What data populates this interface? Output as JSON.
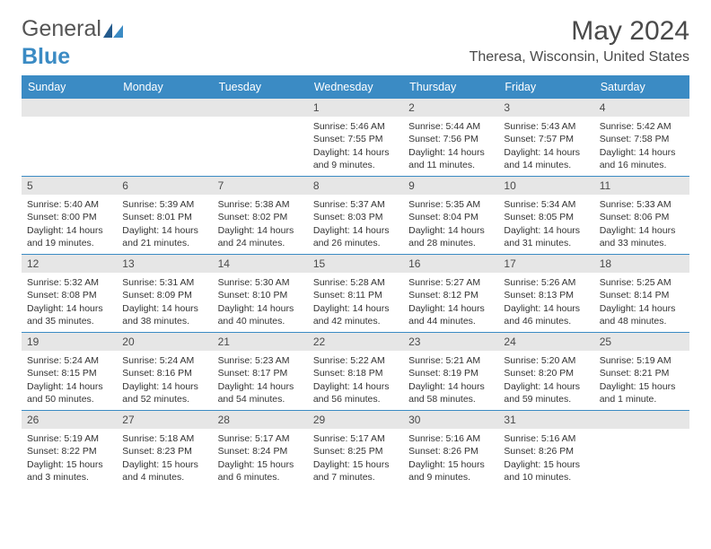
{
  "brand": {
    "word1": "General",
    "word2": "Blue"
  },
  "title": "May 2024",
  "location": "Theresa, Wisconsin, United States",
  "colors": {
    "header_bg": "#3b8bc4",
    "daynum_bg": "#e6e6e6",
    "text": "#4a4a4a",
    "rule": "#3b8bc4"
  },
  "daysOfWeek": [
    "Sunday",
    "Monday",
    "Tuesday",
    "Wednesday",
    "Thursday",
    "Friday",
    "Saturday"
  ],
  "weeks": [
    [
      {
        "n": "",
        "sr": "",
        "ss": "",
        "dl": ""
      },
      {
        "n": "",
        "sr": "",
        "ss": "",
        "dl": ""
      },
      {
        "n": "",
        "sr": "",
        "ss": "",
        "dl": ""
      },
      {
        "n": "1",
        "sr": "Sunrise: 5:46 AM",
        "ss": "Sunset: 7:55 PM",
        "dl": "Daylight: 14 hours and 9 minutes."
      },
      {
        "n": "2",
        "sr": "Sunrise: 5:44 AM",
        "ss": "Sunset: 7:56 PM",
        "dl": "Daylight: 14 hours and 11 minutes."
      },
      {
        "n": "3",
        "sr": "Sunrise: 5:43 AM",
        "ss": "Sunset: 7:57 PM",
        "dl": "Daylight: 14 hours and 14 minutes."
      },
      {
        "n": "4",
        "sr": "Sunrise: 5:42 AM",
        "ss": "Sunset: 7:58 PM",
        "dl": "Daylight: 14 hours and 16 minutes."
      }
    ],
    [
      {
        "n": "5",
        "sr": "Sunrise: 5:40 AM",
        "ss": "Sunset: 8:00 PM",
        "dl": "Daylight: 14 hours and 19 minutes."
      },
      {
        "n": "6",
        "sr": "Sunrise: 5:39 AM",
        "ss": "Sunset: 8:01 PM",
        "dl": "Daylight: 14 hours and 21 minutes."
      },
      {
        "n": "7",
        "sr": "Sunrise: 5:38 AM",
        "ss": "Sunset: 8:02 PM",
        "dl": "Daylight: 14 hours and 24 minutes."
      },
      {
        "n": "8",
        "sr": "Sunrise: 5:37 AM",
        "ss": "Sunset: 8:03 PM",
        "dl": "Daylight: 14 hours and 26 minutes."
      },
      {
        "n": "9",
        "sr": "Sunrise: 5:35 AM",
        "ss": "Sunset: 8:04 PM",
        "dl": "Daylight: 14 hours and 28 minutes."
      },
      {
        "n": "10",
        "sr": "Sunrise: 5:34 AM",
        "ss": "Sunset: 8:05 PM",
        "dl": "Daylight: 14 hours and 31 minutes."
      },
      {
        "n": "11",
        "sr": "Sunrise: 5:33 AM",
        "ss": "Sunset: 8:06 PM",
        "dl": "Daylight: 14 hours and 33 minutes."
      }
    ],
    [
      {
        "n": "12",
        "sr": "Sunrise: 5:32 AM",
        "ss": "Sunset: 8:08 PM",
        "dl": "Daylight: 14 hours and 35 minutes."
      },
      {
        "n": "13",
        "sr": "Sunrise: 5:31 AM",
        "ss": "Sunset: 8:09 PM",
        "dl": "Daylight: 14 hours and 38 minutes."
      },
      {
        "n": "14",
        "sr": "Sunrise: 5:30 AM",
        "ss": "Sunset: 8:10 PM",
        "dl": "Daylight: 14 hours and 40 minutes."
      },
      {
        "n": "15",
        "sr": "Sunrise: 5:28 AM",
        "ss": "Sunset: 8:11 PM",
        "dl": "Daylight: 14 hours and 42 minutes."
      },
      {
        "n": "16",
        "sr": "Sunrise: 5:27 AM",
        "ss": "Sunset: 8:12 PM",
        "dl": "Daylight: 14 hours and 44 minutes."
      },
      {
        "n": "17",
        "sr": "Sunrise: 5:26 AM",
        "ss": "Sunset: 8:13 PM",
        "dl": "Daylight: 14 hours and 46 minutes."
      },
      {
        "n": "18",
        "sr": "Sunrise: 5:25 AM",
        "ss": "Sunset: 8:14 PM",
        "dl": "Daylight: 14 hours and 48 minutes."
      }
    ],
    [
      {
        "n": "19",
        "sr": "Sunrise: 5:24 AM",
        "ss": "Sunset: 8:15 PM",
        "dl": "Daylight: 14 hours and 50 minutes."
      },
      {
        "n": "20",
        "sr": "Sunrise: 5:24 AM",
        "ss": "Sunset: 8:16 PM",
        "dl": "Daylight: 14 hours and 52 minutes."
      },
      {
        "n": "21",
        "sr": "Sunrise: 5:23 AM",
        "ss": "Sunset: 8:17 PM",
        "dl": "Daylight: 14 hours and 54 minutes."
      },
      {
        "n": "22",
        "sr": "Sunrise: 5:22 AM",
        "ss": "Sunset: 8:18 PM",
        "dl": "Daylight: 14 hours and 56 minutes."
      },
      {
        "n": "23",
        "sr": "Sunrise: 5:21 AM",
        "ss": "Sunset: 8:19 PM",
        "dl": "Daylight: 14 hours and 58 minutes."
      },
      {
        "n": "24",
        "sr": "Sunrise: 5:20 AM",
        "ss": "Sunset: 8:20 PM",
        "dl": "Daylight: 14 hours and 59 minutes."
      },
      {
        "n": "25",
        "sr": "Sunrise: 5:19 AM",
        "ss": "Sunset: 8:21 PM",
        "dl": "Daylight: 15 hours and 1 minute."
      }
    ],
    [
      {
        "n": "26",
        "sr": "Sunrise: 5:19 AM",
        "ss": "Sunset: 8:22 PM",
        "dl": "Daylight: 15 hours and 3 minutes."
      },
      {
        "n": "27",
        "sr": "Sunrise: 5:18 AM",
        "ss": "Sunset: 8:23 PM",
        "dl": "Daylight: 15 hours and 4 minutes."
      },
      {
        "n": "28",
        "sr": "Sunrise: 5:17 AM",
        "ss": "Sunset: 8:24 PM",
        "dl": "Daylight: 15 hours and 6 minutes."
      },
      {
        "n": "29",
        "sr": "Sunrise: 5:17 AM",
        "ss": "Sunset: 8:25 PM",
        "dl": "Daylight: 15 hours and 7 minutes."
      },
      {
        "n": "30",
        "sr": "Sunrise: 5:16 AM",
        "ss": "Sunset: 8:26 PM",
        "dl": "Daylight: 15 hours and 9 minutes."
      },
      {
        "n": "31",
        "sr": "Sunrise: 5:16 AM",
        "ss": "Sunset: 8:26 PM",
        "dl": "Daylight: 15 hours and 10 minutes."
      },
      {
        "n": "",
        "sr": "",
        "ss": "",
        "dl": ""
      }
    ]
  ]
}
